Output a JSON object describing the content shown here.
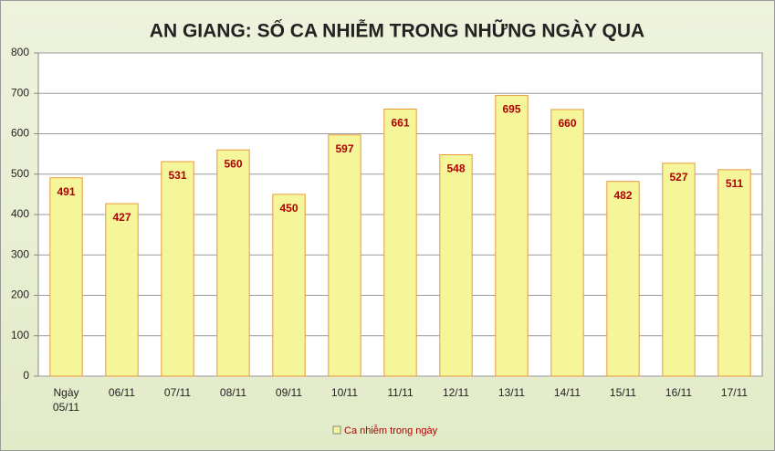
{
  "chart_data": {
    "type": "bar",
    "title": "AN GIANG: SỐ CA NHIỄM TRONG NHỮNG NGÀY QUA",
    "categories": [
      "Ngày 05/11",
      "06/11",
      "07/11",
      "08/11",
      "09/11",
      "10/11",
      "11/11",
      "12/11",
      "13/11",
      "14/11",
      "15/11",
      "16/11",
      "17/11"
    ],
    "series": [
      {
        "name": "Ca nhiễm trong ngày",
        "color": "#f5f59a",
        "values": [
          491,
          427,
          531,
          560,
          450,
          597,
          661,
          548,
          695,
          660,
          482,
          527,
          511
        ]
      }
    ],
    "ylim": [
      0,
      800
    ],
    "yticks": [
      0,
      100,
      200,
      300,
      400,
      500,
      600,
      700,
      800
    ],
    "grid": true,
    "legend": "bottom"
  }
}
